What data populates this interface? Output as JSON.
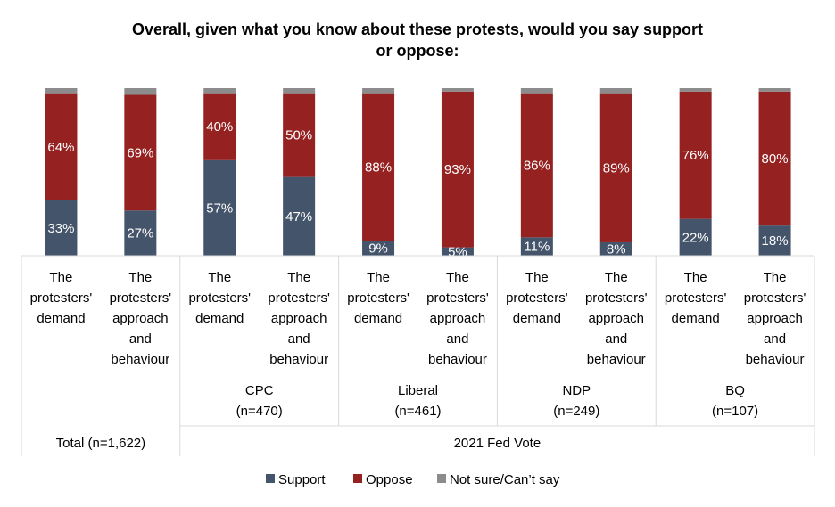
{
  "chart_data": {
    "type": "bar",
    "stacked": true,
    "title": "Overall, given what you know about these protests, would you say support or oppose:",
    "title_lines": [
      "Overall, given what you know about these protests, would you say support",
      "or oppose:"
    ],
    "ylim": [
      0,
      100
    ],
    "grid": false,
    "legend_position": "bottom",
    "categories": [
      [
        "The",
        "protesters'",
        "demand"
      ],
      [
        "The",
        "protesters'",
        "approach",
        "and",
        "behaviour"
      ],
      [
        "The",
        "protesters'",
        "demand"
      ],
      [
        "The",
        "protesters'",
        "approach",
        "and",
        "behaviour"
      ],
      [
        "The",
        "protesters'",
        "demand"
      ],
      [
        "The",
        "protesters'",
        "approach",
        "and",
        "behaviour"
      ],
      [
        "The",
        "protesters'",
        "demand"
      ],
      [
        "The",
        "protesters'",
        "approach",
        "and",
        "behaviour"
      ],
      [
        "The",
        "protesters'",
        "demand"
      ],
      [
        "The",
        "protesters'",
        "approach",
        "and",
        "behaviour"
      ]
    ],
    "groups": [
      {
        "label": [
          "Total (n=1,622)"
        ]
      },
      {
        "label": [
          "CPC",
          "(n=470)"
        ]
      },
      {
        "label": [
          "Liberal",
          "(n=461)"
        ]
      },
      {
        "label": [
          "NDP",
          "(n=249)"
        ]
      },
      {
        "label": [
          "BQ",
          "(n=107)"
        ]
      }
    ],
    "super_group": "2021 Fed Vote",
    "series": [
      {
        "name": "Support",
        "color": "#44546a",
        "values": [
          33,
          27,
          57,
          47,
          9,
          5,
          11,
          8,
          22,
          18
        ]
      },
      {
        "name": "Oppose",
        "color": "#962121",
        "values": [
          64,
          69,
          40,
          50,
          88,
          93,
          86,
          89,
          76,
          80
        ]
      },
      {
        "name": "Not sure/Can’t say",
        "color": "#8c8c8c",
        "values": [
          3,
          4,
          3,
          3,
          3,
          2,
          3,
          3,
          2,
          2
        ]
      }
    ],
    "value_labels": [
      [
        "33%",
        "27%",
        "57%",
        "47%",
        "9%",
        "5%",
        "11%",
        "8%",
        "22%",
        "18%"
      ],
      [
        "64%",
        "69%",
        "40%",
        "50%",
        "88%",
        "93%",
        "86%",
        "89%",
        "76%",
        "80%"
      ]
    ]
  }
}
